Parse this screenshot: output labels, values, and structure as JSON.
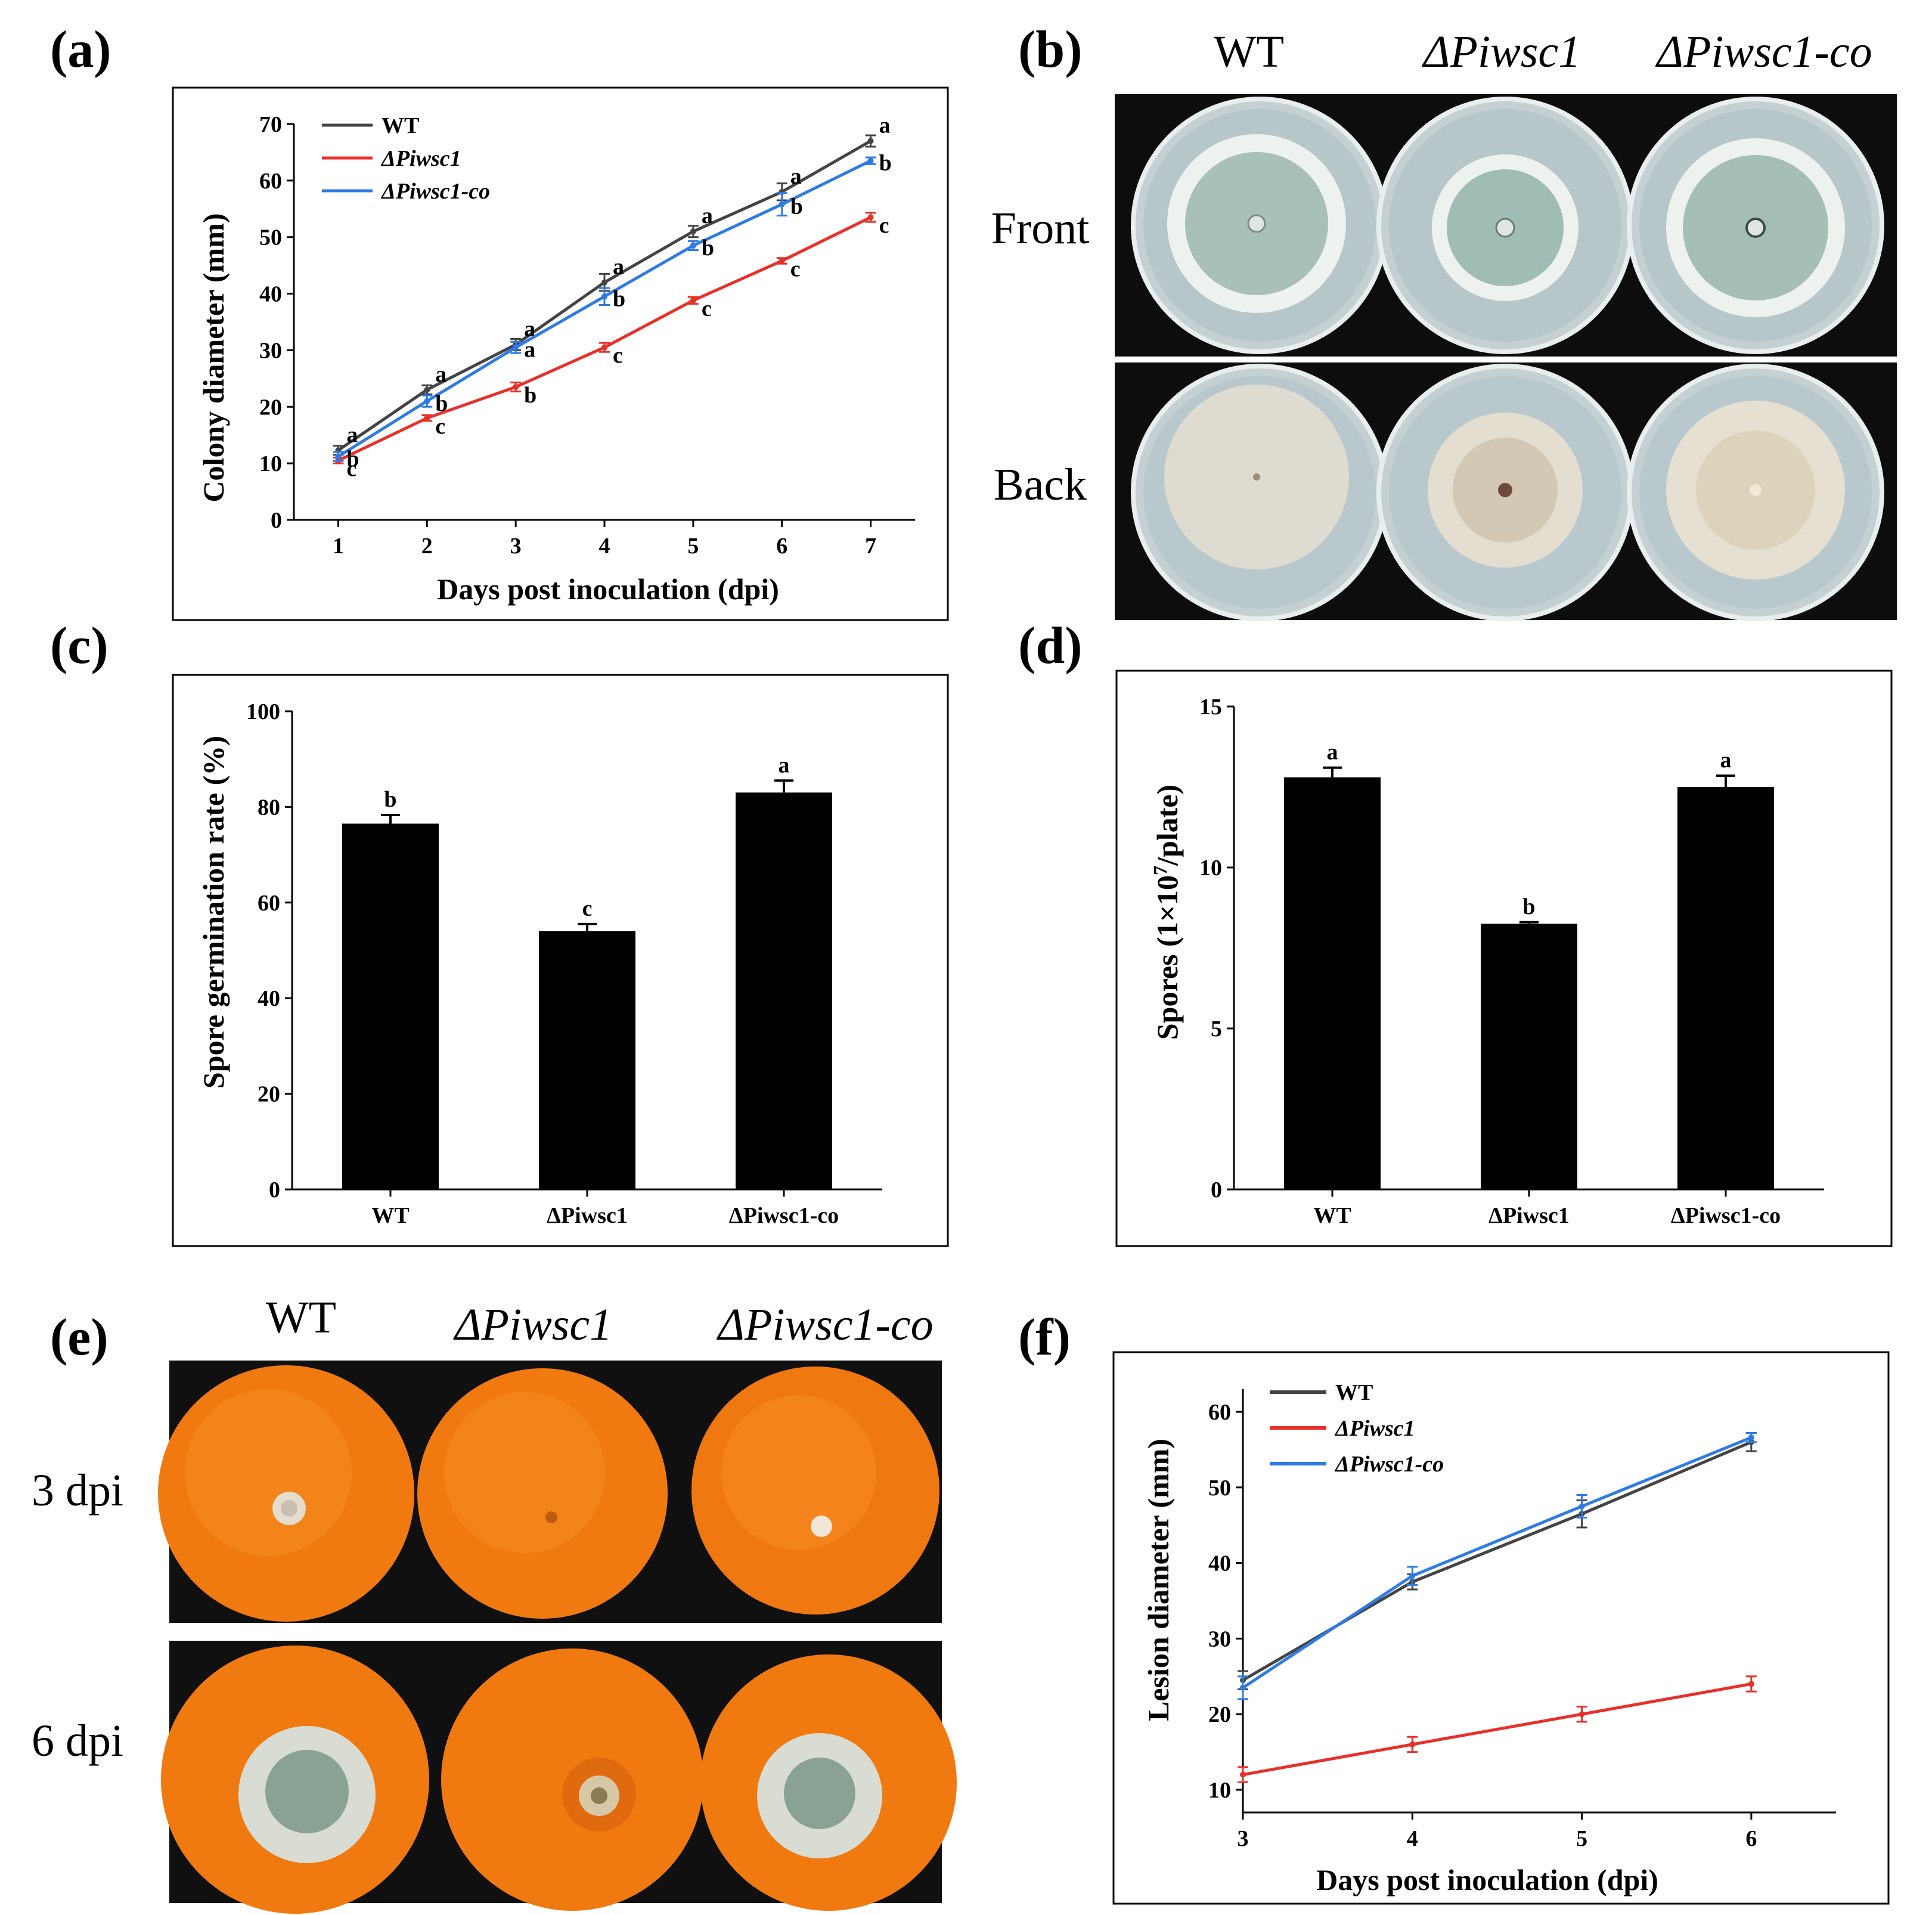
{
  "colors": {
    "wt": "#444444",
    "mutant": "#e8302b",
    "complement": "#2e7be6",
    "bar": "#000000",
    "photo_bg": "#0d0d0d",
    "agar": "#b9c8cc",
    "orange": "#f07a10"
  },
  "panel_labels": {
    "a": "(a)",
    "b": "(b)",
    "c": "(c)",
    "d": "(d)",
    "e": "(e)",
    "f": "(f)"
  },
  "panel_b": {
    "headers": [
      "WT",
      "ΔPiwsc1",
      "ΔPiwsc1-co"
    ],
    "rows": [
      "Front",
      "Back"
    ]
  },
  "panel_e": {
    "headers": [
      "WT",
      "ΔPiwsc1",
      "ΔPiwsc1-co"
    ],
    "rows": [
      "3 dpi",
      "6 dpi"
    ]
  },
  "chart_data": [
    {
      "id": "a",
      "type": "line",
      "xlabel": "Days post inoculation (dpi)",
      "ylabel": "Colony diameter (mm)",
      "x": [
        1,
        2,
        3,
        4,
        5,
        6,
        7
      ],
      "xlim": [
        0.5,
        7.5
      ],
      "ylim": [
        0,
        70
      ],
      "yticks": [
        0,
        10,
        20,
        30,
        40,
        50,
        60,
        70
      ],
      "legend": "top-left",
      "series": [
        {
          "name": "WT",
          "color": "#444444",
          "values": [
            12.3,
            23.0,
            31.0,
            42.0,
            51.0,
            58.0,
            67.0
          ],
          "errors": [
            0.8,
            0.8,
            1.0,
            1.5,
            1.0,
            1.5,
            1.0
          ],
          "letters": [
            "a",
            "a",
            "a",
            "a",
            "a",
            "a",
            "a"
          ]
        },
        {
          "name": "ΔPiwsc1",
          "color": "#e8302b",
          "values": [
            10.5,
            18.0,
            23.5,
            30.5,
            38.8,
            45.8,
            53.5
          ],
          "errors": [
            0.5,
            0.5,
            0.8,
            0.8,
            0.6,
            0.5,
            0.8
          ],
          "letters": [
            "c",
            "c",
            "b",
            "c",
            "c",
            "c",
            "c"
          ]
        },
        {
          "name": "ΔPiwsc1-co",
          "color": "#2e7be6",
          "values": [
            11.2,
            21.0,
            30.5,
            39.5,
            48.5,
            55.8,
            63.5
          ],
          "errors": [
            0.8,
            1.0,
            1.0,
            1.5,
            0.8,
            2.0,
            0.6
          ],
          "letters": [
            "b",
            "b",
            "a",
            "b",
            "b",
            "b",
            "b"
          ]
        }
      ]
    },
    {
      "id": "c",
      "type": "bar",
      "ylabel": "Spore germination rate (%)",
      "categories": [
        "WT",
        "ΔPiwsc1",
        "ΔPiwsc1-co"
      ],
      "values": [
        76.5,
        54.0,
        83.0
      ],
      "errors": [
        1.8,
        1.5,
        2.5
      ],
      "letters": [
        "b",
        "c",
        "a"
      ],
      "ylim": [
        0,
        100
      ],
      "yticks": [
        0,
        20,
        40,
        60,
        80,
        100
      ]
    },
    {
      "id": "d",
      "type": "bar",
      "ylabel_main": "Spores (1×10",
      "ylabel_sup": "7",
      "ylabel_end": "/plate)",
      "categories": [
        "WT",
        "ΔPiwsc1",
        "ΔPiwsc1-co"
      ],
      "values": [
        12.8,
        8.25,
        12.5
      ],
      "errors": [
        0.3,
        0.05,
        0.35
      ],
      "letters": [
        "a",
        "b",
        "a"
      ],
      "ylim": [
        0,
        15
      ],
      "yticks": [
        0,
        5,
        10,
        15
      ]
    },
    {
      "id": "f",
      "type": "line",
      "xlabel": "Days post inoculation (dpi)",
      "ylabel": "Lesion diameter (mm)",
      "x": [
        3,
        4,
        5,
        6
      ],
      "xlim": [
        3,
        6.5
      ],
      "ylim": [
        7,
        63
      ],
      "yticks": [
        10,
        20,
        30,
        40,
        50,
        60
      ],
      "legend": "top-left",
      "series": [
        {
          "name": "WT",
          "color": "#444444",
          "values": [
            24.5,
            37.5,
            46.5,
            56.0
          ],
          "errors": [
            1.2,
            1.0,
            1.8,
            1.2
          ]
        },
        {
          "name": "ΔPiwsc1",
          "color": "#e8302b",
          "values": [
            12.0,
            16.0,
            20.0,
            24.0
          ],
          "errors": [
            1.0,
            1.0,
            1.0,
            1.0
          ]
        },
        {
          "name": "ΔPiwsc1-co",
          "color": "#2e7be6",
          "values": [
            23.5,
            38.3,
            47.5,
            56.6
          ],
          "errors": [
            1.5,
            1.2,
            1.5,
            0.6
          ]
        }
      ]
    }
  ]
}
